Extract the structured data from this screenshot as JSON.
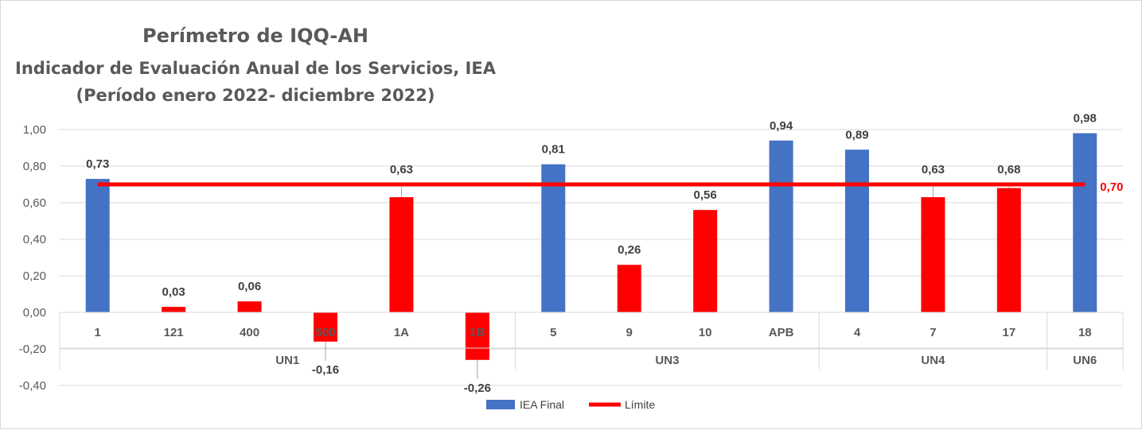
{
  "chart_data": {
    "type": "bar",
    "title": "Perímetro de IQQ-AH",
    "subtitle": "Indicador de Evaluación Anual de los Servicios, IEA",
    "period": "(Período enero 2022- diciembre 2022)",
    "categories": [
      "1",
      "121",
      "400",
      "500",
      "1A",
      "1B",
      "5",
      "9",
      "10",
      "APB",
      "4",
      "7",
      "17",
      "18"
    ],
    "value_labels": [
      "0,73",
      "0,03",
      "0,06",
      "-0,16",
      "0,63",
      "-0,26",
      "0,81",
      "0,26",
      "0,56",
      "0,94",
      "0,89",
      "0,63",
      "0,68",
      "0,98"
    ],
    "groups": [
      {
        "name": "UN1",
        "count": 6
      },
      {
        "name": "UN3",
        "count": 4
      },
      {
        "name": "UN4",
        "count": 3
      },
      {
        "name": "UN6",
        "count": 1
      }
    ],
    "series": [
      {
        "name": "IEA Final",
        "values": [
          0.73,
          0.03,
          0.06,
          -0.16,
          0.63,
          -0.26,
          0.81,
          0.26,
          0.56,
          0.94,
          0.89,
          0.63,
          0.68,
          0.98
        ],
        "point_colors": [
          "#4472C4",
          "#FF0000",
          "#FF0000",
          "#FF0000",
          "#FF0000",
          "#FF0000",
          "#4472C4",
          "#FF0000",
          "#FF0000",
          "#4472C4",
          "#4472C4",
          "#FF0000",
          "#FF0000",
          "#4472C4"
        ]
      },
      {
        "name": "Límite",
        "type": "line",
        "value": 0.7,
        "label": "0,70",
        "color": "#FF0000"
      }
    ],
    "ylim": [
      -0.4,
      1.0
    ],
    "yticks": [
      -0.4,
      -0.2,
      0.0,
      0.2,
      0.4,
      0.6,
      0.8,
      1.0
    ],
    "ytick_labels": [
      "-0,40",
      "-0,20",
      "0,00",
      "0,20",
      "0,40",
      "0,60",
      "0,80",
      "1,00"
    ],
    "xlabel": "",
    "ylabel": "",
    "grid": true,
    "legend": {
      "position": "bottom-center",
      "entries": [
        {
          "label": "IEA Final",
          "color": "#4472C4",
          "kind": "bar"
        },
        {
          "label": "Límite",
          "color": "#FF0000",
          "kind": "line"
        }
      ]
    }
  }
}
